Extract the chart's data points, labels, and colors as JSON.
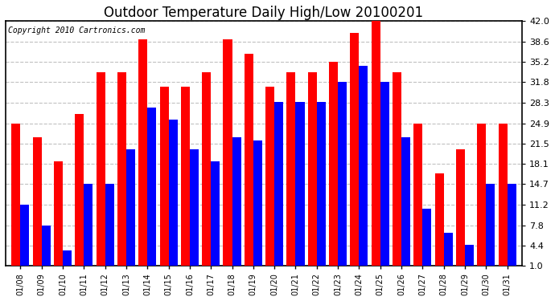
{
  "title": "Outdoor Temperature Daily High/Low 20100201",
  "copyright": "Copyright 2010 Cartronics.com",
  "dates": [
    "01/08",
    "01/09",
    "01/10",
    "01/11",
    "01/12",
    "01/13",
    "01/14",
    "01/15",
    "01/16",
    "01/17",
    "01/18",
    "01/19",
    "01/20",
    "01/21",
    "01/22",
    "01/23",
    "01/24",
    "01/25",
    "01/26",
    "01/27",
    "01/28",
    "01/29",
    "01/30",
    "01/31"
  ],
  "highs": [
    24.9,
    22.5,
    18.5,
    26.5,
    33.5,
    33.5,
    39.0,
    31.0,
    31.0,
    33.5,
    39.0,
    36.5,
    31.0,
    33.5,
    33.5,
    35.2,
    40.0,
    42.0,
    33.5,
    24.9,
    16.5,
    20.5,
    24.9,
    24.9
  ],
  "lows": [
    11.2,
    7.8,
    3.5,
    14.7,
    14.7,
    20.5,
    27.5,
    25.5,
    20.5,
    18.5,
    22.5,
    22.0,
    28.5,
    28.5,
    28.5,
    31.8,
    34.5,
    31.8,
    22.5,
    10.5,
    6.5,
    4.5,
    14.7,
    14.7
  ],
  "high_color": "#ff0000",
  "low_color": "#0000ff",
  "background_color": "#ffffff",
  "plot_background": "#ffffff",
  "yticks": [
    1.0,
    4.4,
    7.8,
    11.2,
    14.7,
    18.1,
    21.5,
    24.9,
    28.3,
    31.8,
    35.2,
    38.6,
    42.0
  ],
  "ymin": 1.0,
  "ymax": 42.0,
  "title_fontsize": 12,
  "copyright_fontsize": 7,
  "ytick_fontsize": 8,
  "xtick_fontsize": 7
}
